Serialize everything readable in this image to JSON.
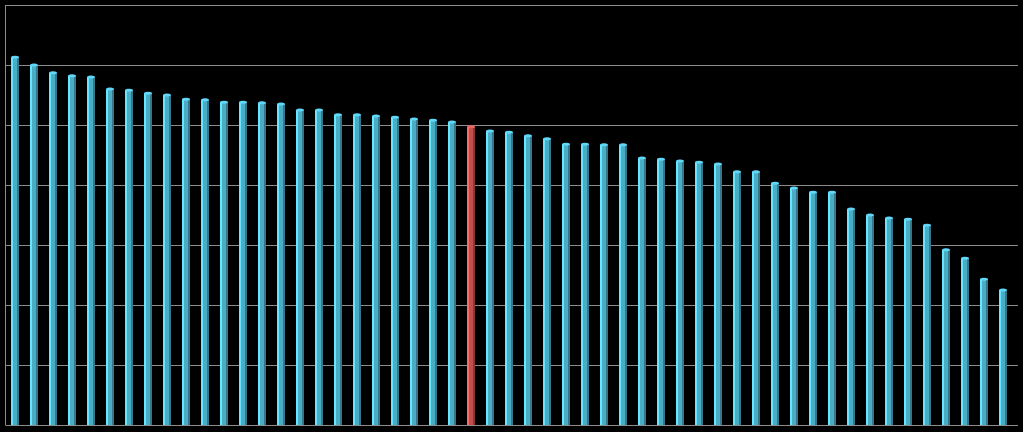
{
  "chart_data": {
    "type": "bar",
    "values": [
      6.13,
      6.0,
      5.87,
      5.82,
      5.8,
      5.6,
      5.58,
      5.53,
      5.5,
      5.43,
      5.42,
      5.38,
      5.38,
      5.37,
      5.35,
      5.25,
      5.25,
      5.17,
      5.17,
      5.15,
      5.13,
      5.1,
      5.08,
      5.05,
      4.97,
      4.9,
      4.88,
      4.82,
      4.77,
      4.68,
      4.68,
      4.67,
      4.67,
      4.45,
      4.43,
      4.4,
      4.38,
      4.35,
      4.22,
      4.22,
      4.03,
      3.95,
      3.88,
      3.88,
      3.6,
      3.5,
      3.45,
      3.43,
      3.33,
      2.92,
      2.78,
      2.43,
      2.25
    ],
    "colors": [
      "#4bacc6",
      "#4bacc6",
      "#4bacc6",
      "#4bacc6",
      "#4bacc6",
      "#4bacc6",
      "#4bacc6",
      "#4bacc6",
      "#4bacc6",
      "#4bacc6",
      "#4bacc6",
      "#4bacc6",
      "#4bacc6",
      "#4bacc6",
      "#4bacc6",
      "#4bacc6",
      "#4bacc6",
      "#4bacc6",
      "#4bacc6",
      "#4bacc6",
      "#4bacc6",
      "#4bacc6",
      "#4bacc6",
      "#4bacc6",
      "#c0504d",
      "#4bacc6",
      "#4bacc6",
      "#4bacc6",
      "#4bacc6",
      "#4bacc6",
      "#4bacc6",
      "#4bacc6",
      "#4bacc6",
      "#4bacc6",
      "#4bacc6",
      "#4bacc6",
      "#4bacc6",
      "#4bacc6",
      "#4bacc6",
      "#4bacc6",
      "#4bacc6",
      "#4bacc6",
      "#4bacc6",
      "#4bacc6",
      "#4bacc6",
      "#4bacc6",
      "#4bacc6",
      "#4bacc6",
      "#4bacc6",
      "#4bacc6",
      "#4bacc6",
      "#4bacc6",
      "#4bacc6"
    ],
    "ylim": [
      0,
      7
    ],
    "yticks": [
      0,
      1,
      2,
      3,
      4,
      5,
      6,
      7
    ],
    "grid": true
  }
}
